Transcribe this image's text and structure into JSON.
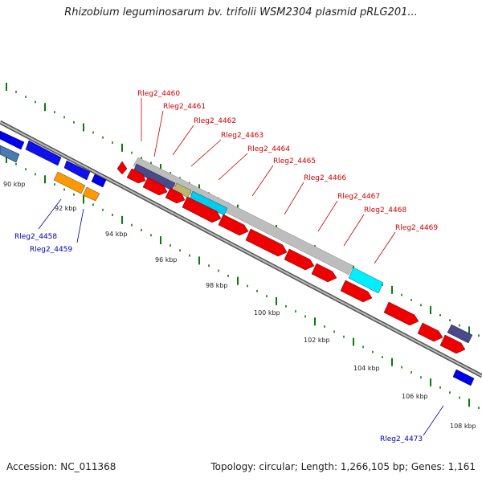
{
  "title": "Rhizobium leguminosarum bv. trifolii WSM2304 plasmid pRLG201...",
  "footer": {
    "accession": "Accession: NC_011368",
    "topology": "Topology: circular; Length: 1,266,105 bp; Genes: 1,161"
  },
  "colors": {
    "forward_cds": "#ff0000",
    "reverse_cds": "#0000ff",
    "label_red": "#cc0000",
    "label_blue": "#0000aa",
    "tick": "#0a7a0a",
    "backbone": "#888888"
  },
  "scale": {
    "unit": "kbp",
    "labels": [
      {
        "text": "90 kbp",
        "kbp": 90
      },
      {
        "text": "92 kbp",
        "kbp": 92
      },
      {
        "text": "94 kbp",
        "kbp": 94
      },
      {
        "text": "96 kbp",
        "kbp": 96
      },
      {
        "text": "98 kbp",
        "kbp": 98
      },
      {
        "text": "100 kbp",
        "kbp": 100
      },
      {
        "text": "102 kbp",
        "kbp": 102
      },
      {
        "text": "104 kbp",
        "kbp": 104
      },
      {
        "text": "106 kbp",
        "kbp": 106
      },
      {
        "text": "108 kbp",
        "kbp": 108
      }
    ]
  },
  "gene_labels": [
    {
      "text": "Rleg2_4458",
      "color": "blue"
    },
    {
      "text": "Rleg2_4459",
      "color": "blue"
    },
    {
      "text": "Rleg2_4460",
      "color": "red"
    },
    {
      "text": "Rleg2_4461",
      "color": "red"
    },
    {
      "text": "Rleg2_4462",
      "color": "red"
    },
    {
      "text": "Rleg2_4463",
      "color": "red"
    },
    {
      "text": "Rleg2_4464",
      "color": "red"
    },
    {
      "text": "Rleg2_4465",
      "color": "red"
    },
    {
      "text": "Rleg2_4466",
      "color": "red"
    },
    {
      "text": "Rleg2_4467",
      "color": "red"
    },
    {
      "text": "Rleg2_4468",
      "color": "red"
    },
    {
      "text": "Rleg2_4469",
      "color": "red"
    },
    {
      "text": "Rleg2_4473",
      "color": "blue"
    }
  ]
}
